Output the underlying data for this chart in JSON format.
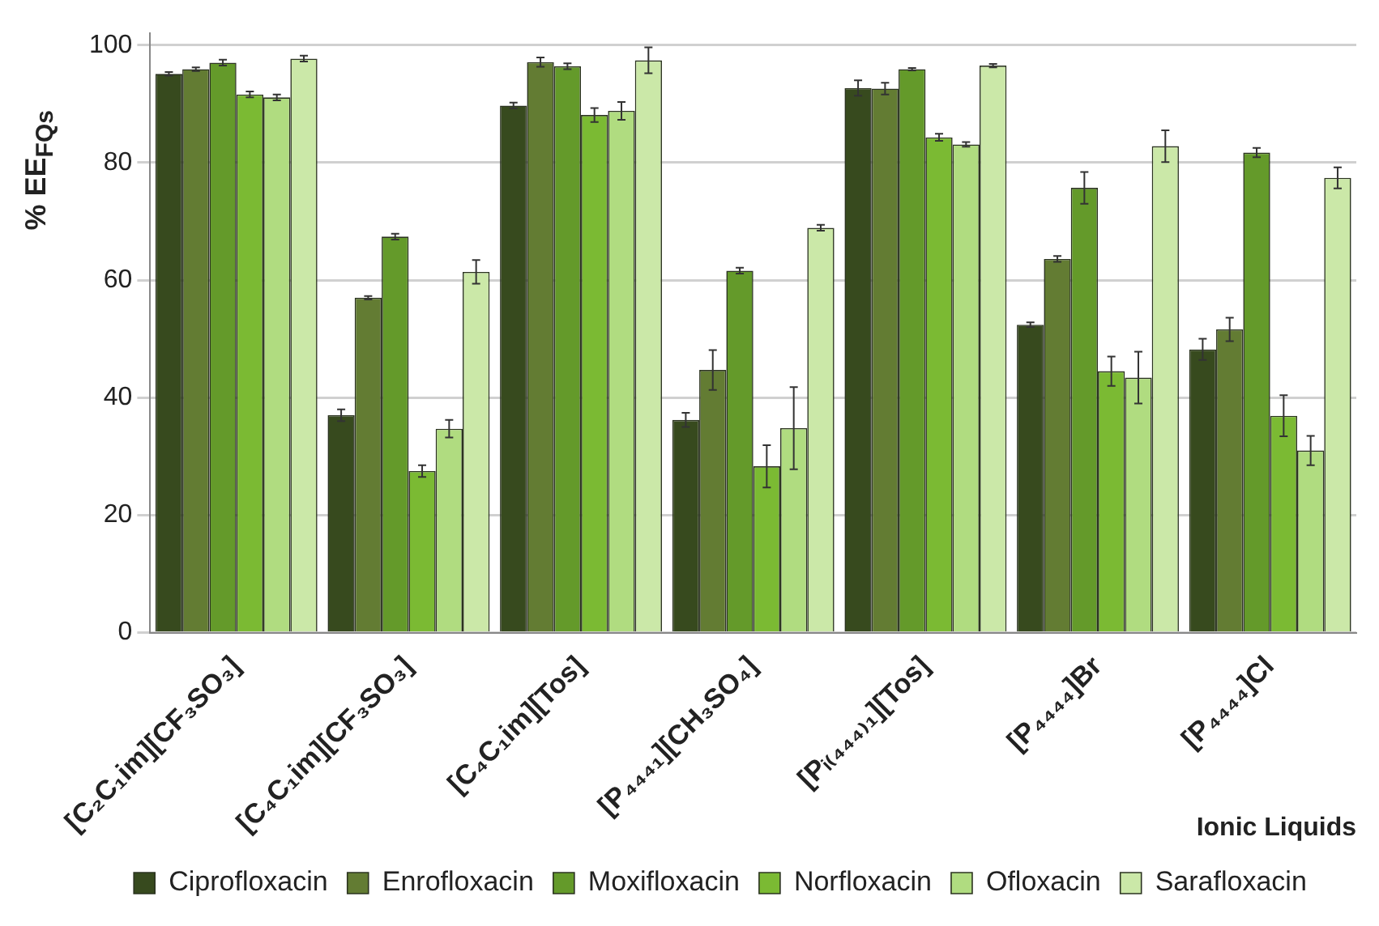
{
  "chart_data": {
    "type": "bar",
    "categories": [
      "[C₂C₁im][CF₃SO₃]",
      "[C₄C₁im][CF₃SO₃]",
      "[C₄C₁im][Tos]",
      "[P₄₄₄₁][CH₃SO₄]",
      "[Pᵢ₍₄₄₄₎₁][Tos]",
      "[P₄₄₄₄]Br",
      "[P₄₄₄₄]Cl"
    ],
    "series": [
      {
        "name": "Ciprofloxacin",
        "color": "#374a1e",
        "values": [
          95.1,
          37.0,
          89.7,
          36.2,
          92.7,
          52.4,
          48.2
        ],
        "errors": [
          0.3,
          1.0,
          0.5,
          1.2,
          1.3,
          0.4,
          1.8
        ]
      },
      {
        "name": "Enrofloxacin",
        "color": "#637c33",
        "values": [
          95.9,
          57.0,
          97.1,
          44.7,
          92.6,
          63.6,
          51.6
        ],
        "errors": [
          0.3,
          0.3,
          0.8,
          3.4,
          1.0,
          0.5,
          2.0
        ]
      },
      {
        "name": "Moxifloxacin",
        "color": "#649a2a",
        "values": [
          97.0,
          67.4,
          96.4,
          61.6,
          95.9,
          75.7,
          81.7
        ],
        "errors": [
          0.5,
          0.5,
          0.5,
          0.5,
          0.2,
          2.7,
          0.8
        ]
      },
      {
        "name": "Norfloxacin",
        "color": "#7bba33",
        "values": [
          91.6,
          27.5,
          88.1,
          28.3,
          84.3,
          44.5,
          36.9
        ],
        "errors": [
          0.5,
          1.0,
          1.2,
          3.6,
          0.6,
          2.5,
          3.5
        ]
      },
      {
        "name": "Ofloxacin",
        "color": "#b0dc80",
        "values": [
          91.1,
          34.7,
          88.8,
          34.8,
          83.1,
          43.4,
          31.0
        ],
        "errors": [
          0.5,
          1.5,
          1.5,
          7.0,
          0.4,
          4.4,
          2.5
        ]
      },
      {
        "name": "Sarafloxacin",
        "color": "#cbe8a8",
        "values": [
          97.7,
          61.4,
          97.4,
          68.9,
          96.5,
          82.8,
          77.4
        ],
        "errors": [
          0.5,
          2.0,
          2.2,
          0.5,
          0.3,
          2.7,
          1.8
        ]
      }
    ],
    "xlabel": "Ionic Liquids",
    "ylabel": "% EE$_{FQs}$",
    "ylim": [
      0,
      102
    ],
    "yticks": [
      0,
      20,
      40,
      60,
      80,
      100
    ],
    "grid": "y",
    "legend": "bottom"
  }
}
